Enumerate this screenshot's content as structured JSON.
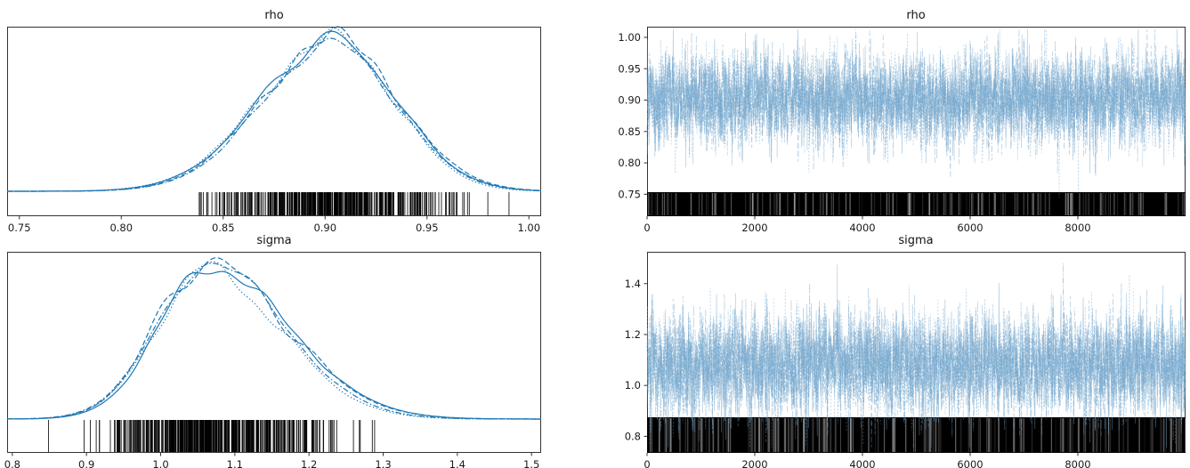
{
  "figure": {
    "background": "#ffffff",
    "kde_line_color": "#1f77b4",
    "trace_line_color": "#6da3cb",
    "rug_color": "#000000",
    "axis_color": "#333333",
    "tick_label_color": "#1a1a1a"
  },
  "chart_data": [
    {
      "id": "rho-density",
      "type": "line",
      "plot_kind": "kde_with_rug",
      "title": "rho",
      "xlim": [
        0.744,
        1.006
      ],
      "x_tick_labels": [
        "0.75",
        "0.80",
        "0.85",
        "0.90",
        "0.95",
        "1.00"
      ],
      "peak": 0.904,
      "sd_left": 0.035,
      "sd_right": 0.031,
      "rug_range": [
        0.838,
        0.993
      ],
      "rug_n": 450,
      "rug_height": 28,
      "top_margin": 12,
      "n_chains": 4,
      "line_styles": [
        "solid",
        "dashed",
        "dotted",
        "dashdot"
      ],
      "seed": 11,
      "grid": false,
      "legend": "none"
    },
    {
      "id": "rho-trace",
      "type": "line",
      "plot_kind": "trace_with_rug",
      "title": "rho",
      "xlim": [
        0,
        10000
      ],
      "x_tick_labels": [
        "0",
        "2000",
        "4000",
        "6000",
        "8000"
      ],
      "ylim": [
        0.715,
        1.017
      ],
      "y_tick_labels": [
        "0.75",
        "0.80",
        "0.85",
        "0.90",
        "0.95",
        "1.00"
      ],
      "mean": 0.902,
      "sd": 0.036,
      "n_draws": 10000,
      "n_chains": 4,
      "line_styles": [
        "solid",
        "dashed",
        "dotted",
        "dashdot"
      ],
      "rug_height": 27,
      "seed": 22,
      "grid": false,
      "legend": "none"
    },
    {
      "id": "sigma-density",
      "type": "line",
      "plot_kind": "kde_with_rug",
      "title": "sigma",
      "xlim": [
        0.793,
        1.513
      ],
      "x_tick_labels": [
        "0.8",
        "0.9",
        "1.0",
        "1.1",
        "1.2",
        "1.3",
        "1.4",
        "1.5"
      ],
      "peak": 1.063,
      "sd_left": 0.07,
      "sd_right": 0.105,
      "rug_range": [
        0.845,
        1.39
      ],
      "rug_n": 450,
      "rug_height": 38,
      "top_margin": 12,
      "n_chains": 4,
      "line_styles": [
        "solid",
        "dashed",
        "dotted",
        "dashdot"
      ],
      "seed": 33,
      "grid": false,
      "legend": "none"
    },
    {
      "id": "sigma-trace",
      "type": "line",
      "plot_kind": "trace_with_rug",
      "title": "sigma",
      "xlim": [
        0,
        10000
      ],
      "x_tick_labels": [
        "0",
        "2000",
        "4000",
        "6000",
        "8000"
      ],
      "ylim": [
        0.735,
        1.525
      ],
      "y_tick_labels": [
        "0.8",
        "1.0",
        "1.2",
        "1.4"
      ],
      "mean": 1.082,
      "sd": 0.098,
      "n_draws": 10000,
      "n_chains": 4,
      "line_styles": [
        "solid",
        "dashed",
        "dotted",
        "dashdot"
      ],
      "rug_height": 40,
      "seed": 44,
      "grid": false,
      "legend": "none"
    }
  ]
}
